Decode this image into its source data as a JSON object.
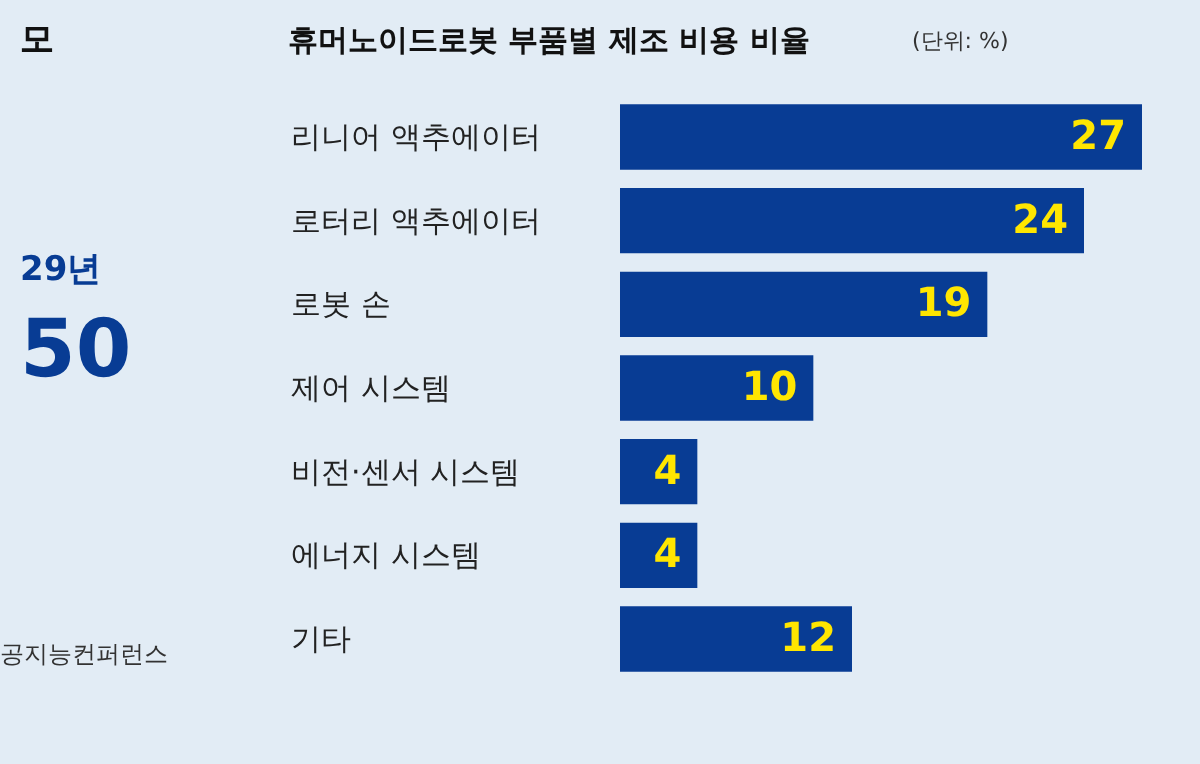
{
  "chart_data": {
    "type": "bar",
    "orientation": "horizontal",
    "title": "휴머노이드로봇 부품별 제조 비용 비율",
    "subtitle": "(단위: %)",
    "categories": [
      "리니어 액추에이터",
      "로터리 액추에이터",
      "로봇 손",
      "제어 시스템",
      "비전·센서 시스템",
      "에너지 시스템",
      "기타"
    ],
    "values": [
      27,
      24,
      19,
      10,
      4,
      4,
      12
    ],
    "color": "#083c94",
    "data_labels": true,
    "annotations": [
      "모",
      "29년",
      "50",
      "공지능컨퍼런스"
    ]
  }
}
